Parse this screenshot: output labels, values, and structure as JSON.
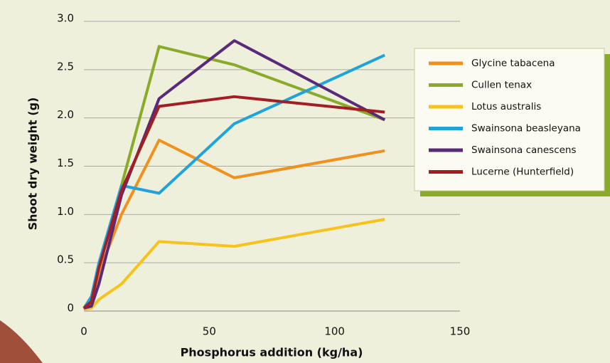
{
  "chart_data": {
    "type": "line",
    "x_label": "Phosphorus addition (kg/ha)",
    "y_label": "Shoot dry weight (g)",
    "x": [
      0,
      3,
      6,
      15,
      30,
      60,
      120
    ],
    "series": [
      {
        "name": "Glycine tabacena",
        "color": "#f0901e",
        "values": [
          0.02,
          0.08,
          0.4,
          1.0,
          1.77,
          1.38,
          1.66
        ]
      },
      {
        "name": "Cullen tenax",
        "color": "#8aaa2a",
        "values": [
          0.03,
          0.1,
          0.45,
          1.3,
          2.74,
          2.55,
          1.98
        ]
      },
      {
        "name": "Lotus australis",
        "color": "#f7c31a",
        "values": [
          0.02,
          0.03,
          0.12,
          0.28,
          0.72,
          0.67,
          0.95
        ]
      },
      {
        "name": "Swainsona beasleyana",
        "color": "#1ea3dc",
        "values": [
          0.03,
          0.15,
          0.5,
          1.3,
          1.22,
          1.94,
          2.65
        ]
      },
      {
        "name": "Swainsona canescens",
        "color": "#5a2a7a",
        "values": [
          0.03,
          0.05,
          0.28,
          1.2,
          2.2,
          2.8,
          1.98
        ]
      },
      {
        "name": "Lucerne (Hunterfield)",
        "color": "#a31e22",
        "values": [
          0.03,
          0.1,
          0.45,
          1.25,
          2.12,
          2.22,
          2.06
        ]
      }
    ],
    "xlim": [
      0,
      150
    ],
    "xticks": [
      0,
      50,
      100,
      150
    ],
    "ylim": [
      0,
      3
    ],
    "yticks": [
      0,
      0.5,
      {
        "value": 1,
        "label": "1.0"
      },
      1.5,
      {
        "value": 2,
        "label": "2.0"
      },
      2.5,
      {
        "value": 3,
        "label": "3.0"
      }
    ],
    "grid": true,
    "legend": "right"
  }
}
